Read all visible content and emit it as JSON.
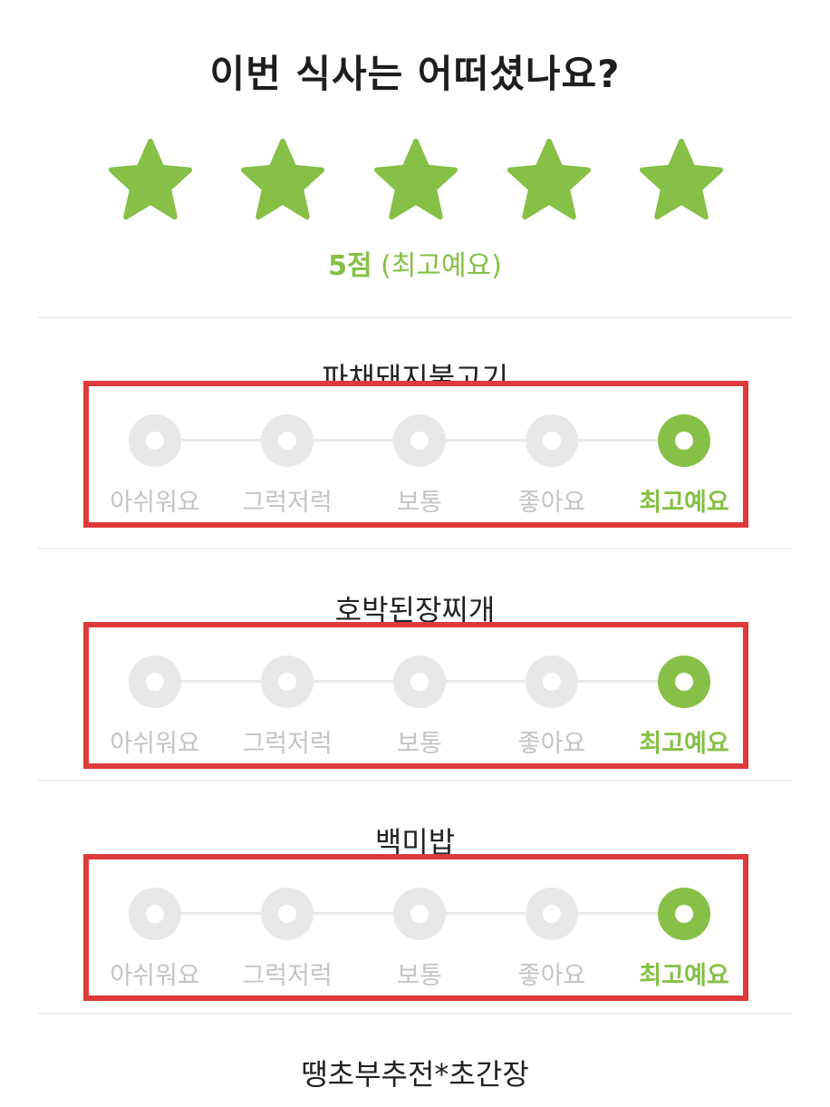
{
  "question": "이번 식사는 어떠셨나요?",
  "accent_color": "#86c046",
  "rating": {
    "stars_filled": 5,
    "stars_total": 5,
    "score_number": "5점",
    "score_text": "(최고예요)"
  },
  "options": [
    "아쉬워요",
    "그럭저럭",
    "보통",
    "좋아요",
    "최고예요"
  ],
  "dishes": [
    {
      "name": "파채돼지불고기",
      "selected_index": 4
    },
    {
      "name": "호박된장찌개",
      "selected_index": 4
    },
    {
      "name": "백미밥",
      "selected_index": 4
    },
    {
      "name": "땡초부추전*초간장"
    }
  ]
}
